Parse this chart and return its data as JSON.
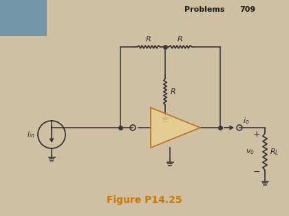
{
  "bg_color": "#cfc0a3",
  "title": "Figure P14.25",
  "title_color": "#cc7700",
  "title_fontsize": 10,
  "header_text": "Problems",
  "header_num": "709",
  "header_color": "#1a1a1a",
  "line_color": "#3a3a3a",
  "component_color": "#2a2a2a",
  "opamp_fill": "#e8d090",
  "opamp_edge": "#b87020",
  "fig_width": 4.2,
  "fig_height": 3.13,
  "dpi": 100,
  "corner_color": "#5588aa",
  "lw": 1.2
}
